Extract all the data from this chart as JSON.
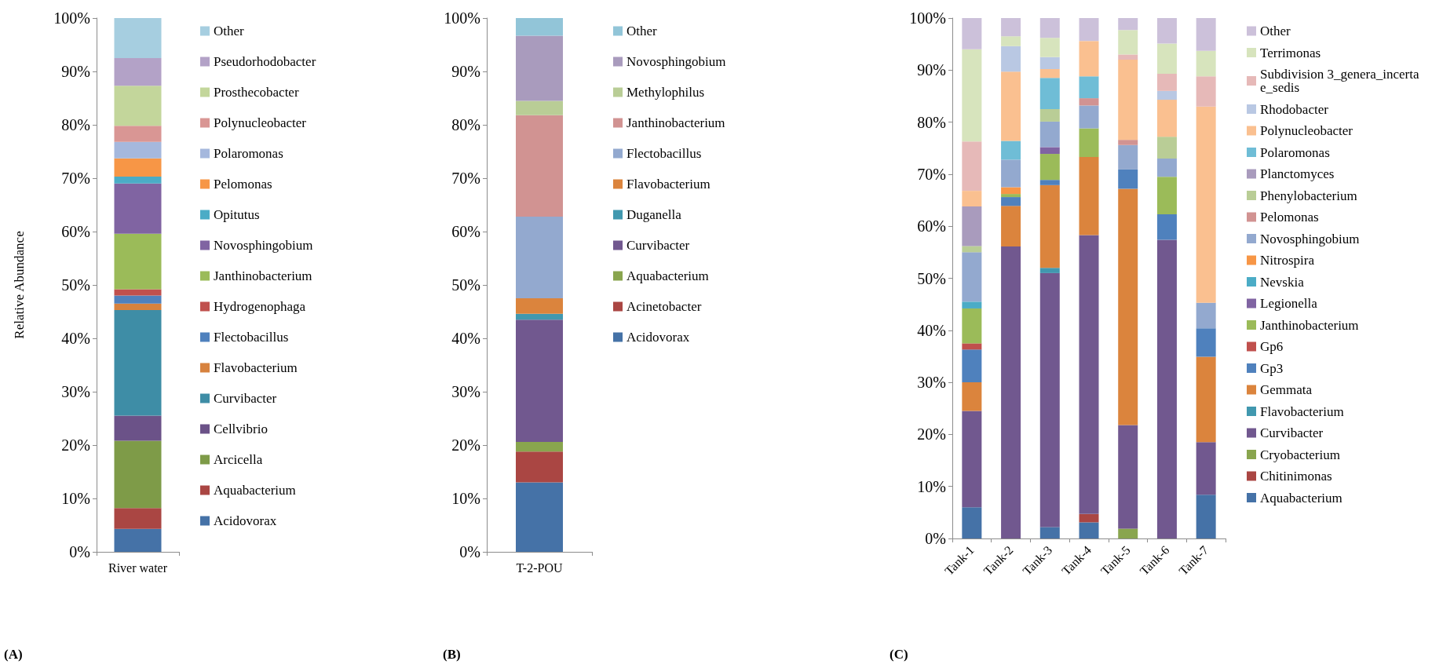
{
  "chart_data": [
    {
      "type": "bar",
      "title": "(A)",
      "ylabel": "Relative Abundance",
      "categories": [
        "River water"
      ],
      "stacked": true,
      "legend": "right",
      "ylim": [
        0,
        100
      ],
      "yticks": [
        {
          "value": 0,
          "label": "0%"
        },
        {
          "value": 10,
          "label": "10%"
        },
        {
          "value": 20,
          "label": "20%"
        },
        {
          "value": 30,
          "label": "30%"
        },
        {
          "value": 40,
          "label": "40%"
        },
        {
          "value": 50,
          "label": "50%"
        },
        {
          "value": 60,
          "label": "60%"
        },
        {
          "value": 70,
          "label": "70%"
        },
        {
          "value": 80,
          "label": "80%"
        },
        {
          "value": 90,
          "label": "90%"
        },
        {
          "value": 100,
          "label": "100%"
        }
      ],
      "series": [
        {
          "name": "Acidovorax",
          "color": "#4572a7",
          "values": [
            4.3
          ]
        },
        {
          "name": "Aquabacterium",
          "color": "#aa4643",
          "values": [
            3.9
          ]
        },
        {
          "name": "Arcicella",
          "color": "#7e9b48",
          "values": [
            12.6
          ]
        },
        {
          "name": "Cellvibrio",
          "color": "#6b5288",
          "values": [
            4.7
          ]
        },
        {
          "name": "Curvibacter",
          "color": "#3e8da6",
          "values": [
            19.8
          ]
        },
        {
          "name": "Flavobacterium",
          "color": "#d7823e",
          "values": [
            1.2
          ]
        },
        {
          "name": "Flectobacillus",
          "color": "#4f81bd",
          "values": [
            1.5
          ]
        },
        {
          "name": "Hydrogenophaga",
          "color": "#c0504d",
          "values": [
            1.2
          ]
        },
        {
          "name": "Janthinobacterium",
          "color": "#9bbb59",
          "values": [
            10.4
          ]
        },
        {
          "name": "Novosphingobium",
          "color": "#8064a2",
          "values": [
            9.4
          ]
        },
        {
          "name": "Opitutus",
          "color": "#4bacc6",
          "values": [
            1.3
          ]
        },
        {
          "name": "Pelomonas",
          "color": "#f79646",
          "values": [
            3.4
          ]
        },
        {
          "name": "Polaromonas",
          "color": "#a5b8dd",
          "values": [
            3.1
          ]
        },
        {
          "name": "Polynucleobacter",
          "color": "#d99694",
          "values": [
            3.0
          ]
        },
        {
          "name": "Prosthecobacter",
          "color": "#c3d69b",
          "values": [
            7.5
          ]
        },
        {
          "name": "Pseudorhodobacter",
          "color": "#b3a2c7",
          "values": [
            5.2
          ]
        },
        {
          "name": "Other",
          "color": "#a6cee0",
          "values": [
            7.5
          ]
        }
      ]
    },
    {
      "type": "bar",
      "title": "(B)",
      "categories": [
        "T-2-POU"
      ],
      "stacked": true,
      "legend": "right",
      "ylim": [
        0,
        100
      ],
      "yticks": [
        {
          "value": 0,
          "label": "0%"
        },
        {
          "value": 10,
          "label": "10%"
        },
        {
          "value": 20,
          "label": "20%"
        },
        {
          "value": 30,
          "label": "30%"
        },
        {
          "value": 40,
          "label": "40%"
        },
        {
          "value": 50,
          "label": "50%"
        },
        {
          "value": 60,
          "label": "60%"
        },
        {
          "value": 70,
          "label": "70%"
        },
        {
          "value": 80,
          "label": "80%"
        },
        {
          "value": 90,
          "label": "90%"
        },
        {
          "value": 100,
          "label": "100%"
        }
      ],
      "series": [
        {
          "name": "Acidovorax",
          "color": "#4572a7",
          "values": [
            13.0
          ]
        },
        {
          "name": "Acinetobacter",
          "color": "#aa4643",
          "values": [
            5.8
          ]
        },
        {
          "name": "Aquabacterium",
          "color": "#89a54e",
          "values": [
            1.8
          ]
        },
        {
          "name": "Curvibacter",
          "color": "#71588f",
          "values": [
            22.9
          ]
        },
        {
          "name": "Duganella",
          "color": "#4198af",
          "values": [
            1.1
          ]
        },
        {
          "name": "Flavobacterium",
          "color": "#db843d",
          "values": [
            2.9
          ]
        },
        {
          "name": "Flectobacillus",
          "color": "#93a9cf",
          "values": [
            15.3
          ]
        },
        {
          "name": "Janthinobacterium",
          "color": "#d19392",
          "values": [
            19.0
          ]
        },
        {
          "name": "Methylophilus",
          "color": "#b9cd96",
          "values": [
            2.7
          ]
        },
        {
          "name": "Novosphingobium",
          "color": "#a99bbd",
          "values": [
            12.2
          ]
        },
        {
          "name": "Other",
          "color": "#92c5d8",
          "values": [
            3.3
          ]
        }
      ]
    },
    {
      "type": "bar",
      "title": "(C)",
      "categories": [
        "Tank-1",
        "Tank-2",
        "Tank-3",
        "Tank-4",
        "Tank-5",
        "Tank-6",
        "Tank-7"
      ],
      "stacked": true,
      "legend": "right",
      "ylim": [
        0,
        100
      ],
      "yticks": [
        {
          "value": 0,
          "label": "0%"
        },
        {
          "value": 10,
          "label": "10%"
        },
        {
          "value": 20,
          "label": "20%"
        },
        {
          "value": 30,
          "label": "30%"
        },
        {
          "value": 40,
          "label": "40%"
        },
        {
          "value": 50,
          "label": "50%"
        },
        {
          "value": 60,
          "label": "60%"
        },
        {
          "value": 70,
          "label": "70%"
        },
        {
          "value": 80,
          "label": "80%"
        },
        {
          "value": 90,
          "label": "90%"
        },
        {
          "value": 100,
          "label": "100%"
        }
      ],
      "series": [
        {
          "name": "Aquabacterium",
          "color": "#4572a7",
          "values": [
            6.0,
            0,
            2.2,
            3.1,
            0,
            0,
            8.4
          ]
        },
        {
          "name": "Chitinimonas",
          "color": "#aa4643",
          "values": [
            0,
            0,
            0,
            1.6,
            0,
            0,
            0
          ]
        },
        {
          "name": "Cryobacterium",
          "color": "#89a54e",
          "values": [
            0,
            0,
            0,
            0,
            1.9,
            0,
            0
          ]
        },
        {
          "name": "Curvibacter",
          "color": "#71588f",
          "values": [
            18.5,
            56.1,
            48.8,
            53.6,
            19.9,
            57.4,
            10.1
          ]
        },
        {
          "name": "Flavobacterium",
          "color": "#4198af",
          "values": [
            0,
            0,
            1.0,
            0,
            0,
            0,
            0
          ]
        },
        {
          "name": "Gemmata",
          "color": "#db843d",
          "values": [
            5.5,
            7.8,
            15.9,
            15.0,
            45.4,
            0,
            16.4
          ]
        },
        {
          "name": "Gp3",
          "color": "#4f81bd",
          "values": [
            6.3,
            1.7,
            1.0,
            0,
            3.7,
            4.9,
            5.5
          ]
        },
        {
          "name": "Gp6",
          "color": "#c0504d",
          "values": [
            1.2,
            0,
            0,
            0,
            0,
            0,
            0
          ]
        },
        {
          "name": "Janthinobacterium",
          "color": "#9bbb59",
          "values": [
            6.7,
            0.6,
            5.0,
            5.5,
            0,
            7.2,
            0
          ]
        },
        {
          "name": "Legionella",
          "color": "#8064a2",
          "values": [
            0,
            0,
            1.3,
            0,
            0,
            0,
            0
          ]
        },
        {
          "name": "Nevskia",
          "color": "#4bacc6",
          "values": [
            1.3,
            0,
            0,
            0,
            0,
            0,
            0
          ]
        },
        {
          "name": "Nitrospira",
          "color": "#f79646",
          "values": [
            0,
            1.3,
            0,
            0,
            0,
            0,
            0
          ]
        },
        {
          "name": "Novosphingobium",
          "color": "#93a9cf",
          "values": [
            9.5,
            5.3,
            4.9,
            4.4,
            4.7,
            3.5,
            4.9
          ]
        },
        {
          "name": "Pelomonas",
          "color": "#d19392",
          "values": [
            0,
            0,
            0,
            1.4,
            1.0,
            0,
            0
          ]
        },
        {
          "name": "Phenylobacterium",
          "color": "#b9cd96",
          "values": [
            1.2,
            0,
            2.4,
            0,
            0,
            4.2,
            0
          ]
        },
        {
          "name": "Planctomyces",
          "color": "#a99bbd",
          "values": [
            7.6,
            0,
            0,
            0,
            0,
            0,
            0
          ]
        },
        {
          "name": "Polaromonas",
          "color": "#6fbdd6",
          "values": [
            0,
            3.6,
            6.0,
            4.2,
            0,
            0,
            0
          ]
        },
        {
          "name": "Polynucleobacter",
          "color": "#fac090",
          "values": [
            3.0,
            13.3,
            1.7,
            6.8,
            15.4,
            7.1,
            37.7
          ]
        },
        {
          "name": "Rhodobacter",
          "color": "#b9c8e3",
          "values": [
            0,
            4.9,
            2.3,
            0,
            0,
            1.7,
            0
          ]
        },
        {
          "name": "Subdivision 3_genera_incertae_sedis",
          "color": "#e6b9b8",
          "values": [
            9.5,
            0,
            0,
            0,
            1.0,
            3.3,
            5.8
          ]
        },
        {
          "name": "Terrimonas",
          "color": "#d7e4bd",
          "values": [
            17.7,
            1.9,
            3.7,
            0,
            4.7,
            5.8,
            4.9
          ]
        },
        {
          "name": "Other",
          "color": "#ccc1da",
          "values": [
            6.0,
            3.5,
            3.8,
            4.4,
            2.3,
            4.9,
            6.3
          ]
        }
      ]
    }
  ]
}
